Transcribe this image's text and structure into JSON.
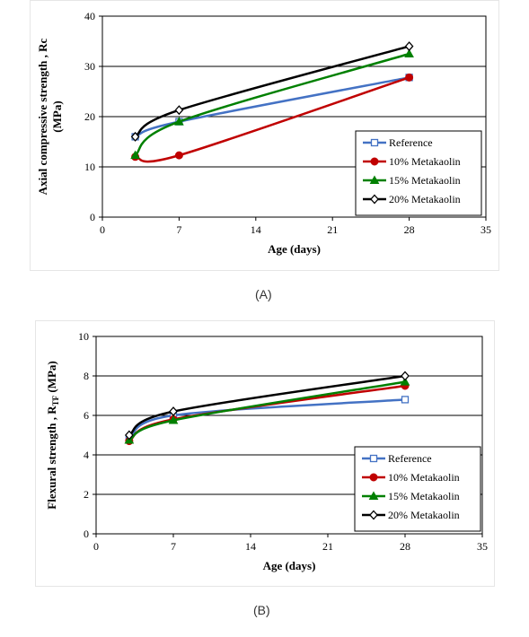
{
  "chart_data": [
    {
      "type": "line",
      "ylabel": "Axial compressive strength , Rc (MPa)",
      "ylabel_lines": [
        "Axial compressive strength , Rc",
        "(MPa)"
      ],
      "xlabel": "Age (days)",
      "xlim": [
        0,
        35
      ],
      "ylim": [
        0,
        40
      ],
      "xticks": [
        0,
        7,
        14,
        21,
        28,
        35
      ],
      "yticks": [
        0,
        10,
        20,
        30,
        40
      ],
      "grid": "horizontal",
      "legend_position": "bottom-right",
      "caption": "(A)",
      "series": [
        {
          "name": "Reference",
          "color": "#4472c4",
          "marker": "open-square",
          "x": [
            3,
            7,
            28
          ],
          "y": [
            16,
            19,
            27.8
          ]
        },
        {
          "name": "10% Metakaolin",
          "color": "#c00000",
          "marker": "filled-circle",
          "x": [
            3,
            7,
            28
          ],
          "y": [
            12,
            12.3,
            27.8
          ]
        },
        {
          "name": "15% Metakaolin",
          "color": "#008000",
          "marker": "filled-triangle",
          "x": [
            3,
            7,
            28
          ],
          "y": [
            12.3,
            19,
            32.5
          ]
        },
        {
          "name": "20% Metakaolin",
          "color": "#000000",
          "marker": "open-diamond",
          "x": [
            3,
            7,
            28
          ],
          "y": [
            16,
            21.3,
            34
          ]
        }
      ]
    },
    {
      "type": "line",
      "ylabel": "Flexural strength , RTF (MPa)",
      "ylabel_lines": [
        "Flexural strength , R",
        "TF",
        " (MPa)"
      ],
      "xlabel": "Age (days)",
      "xlim": [
        0,
        35
      ],
      "ylim": [
        0,
        10
      ],
      "xticks": [
        0,
        7,
        14,
        21,
        28,
        35
      ],
      "yticks": [
        0,
        2,
        4,
        6,
        8,
        10
      ],
      "grid": "horizontal",
      "legend_position": "bottom-right",
      "caption": "(B)",
      "series": [
        {
          "name": "Reference",
          "color": "#4472c4",
          "marker": "open-square",
          "x": [
            3,
            7,
            28
          ],
          "y": [
            4.8,
            6.0,
            6.8
          ]
        },
        {
          "name": "10% Metakaolin",
          "color": "#c00000",
          "marker": "filled-circle",
          "x": [
            3,
            7,
            28
          ],
          "y": [
            4.7,
            5.8,
            7.5
          ]
        },
        {
          "name": "15% Metakaolin",
          "color": "#008000",
          "marker": "filled-triangle",
          "x": [
            3,
            7,
            28
          ],
          "y": [
            4.75,
            5.75,
            7.7
          ]
        },
        {
          "name": "20% Metakaolin",
          "color": "#000000",
          "marker": "open-diamond",
          "x": [
            3,
            7,
            28
          ],
          "y": [
            5.0,
            6.2,
            8.0
          ]
        }
      ]
    }
  ]
}
